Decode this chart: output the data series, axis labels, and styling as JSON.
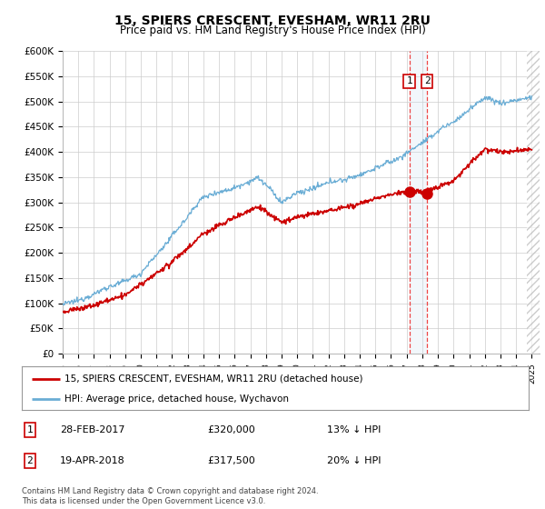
{
  "title": "15, SPIERS CRESCENT, EVESHAM, WR11 2RU",
  "subtitle": "Price paid vs. HM Land Registry's House Price Index (HPI)",
  "legend_line1": "15, SPIERS CRESCENT, EVESHAM, WR11 2RU (detached house)",
  "legend_line2": "HPI: Average price, detached house, Wychavon",
  "footer": "Contains HM Land Registry data © Crown copyright and database right 2024.\nThis data is licensed under the Open Government Licence v3.0.",
  "transaction1": {
    "label": "1",
    "date": "28-FEB-2017",
    "price": "£320,000",
    "hpi_diff": "13% ↓ HPI",
    "year": 2017.17
  },
  "transaction2": {
    "label": "2",
    "date": "19-APR-2018",
    "price": "£317,500",
    "hpi_diff": "20% ↓ HPI",
    "year": 2018.3
  },
  "ylim": [
    0,
    600000
  ],
  "xlim_start": 1995.0,
  "xlim_end": 2025.5,
  "hpi_color": "#6aadd5",
  "price_color": "#cc0000",
  "marker_color": "#cc0000",
  "background_color": "#ffffff",
  "grid_color": "#cccccc",
  "vline_color": "#ee4444",
  "highlight_fill": "#cce0f0"
}
